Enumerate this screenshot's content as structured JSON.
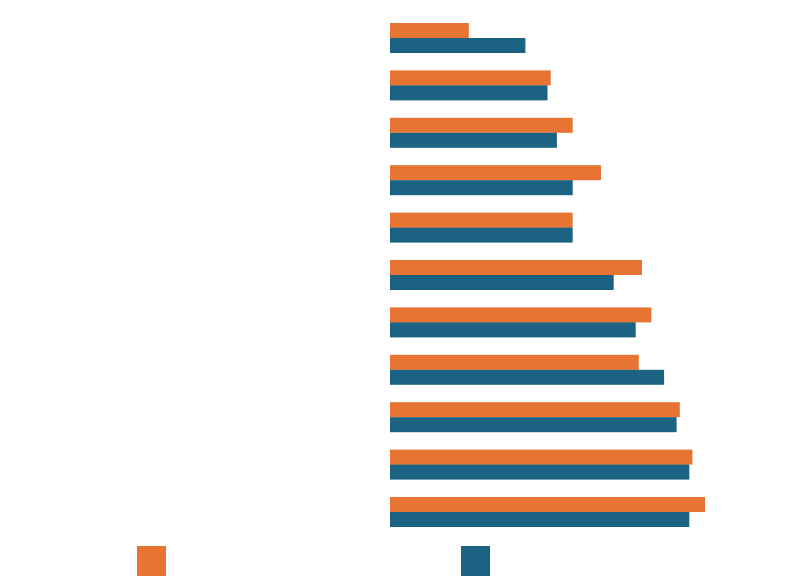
{
  "chart_data": {
    "type": "bar",
    "orientation": "horizontal",
    "categories": [
      "",
      "",
      "",
      "",
      "",
      "",
      "",
      "",
      "",
      "",
      ""
    ],
    "series": [
      {
        "color": "#e87433",
        "values": [
          25,
          51,
          58,
          67,
          58,
          80,
          83,
          79,
          92,
          96,
          100
        ]
      },
      {
        "color": "#1b6283",
        "values": [
          43,
          50,
          53,
          58,
          58,
          71,
          78,
          87,
          91,
          95,
          95
        ]
      }
    ],
    "xlim": [
      0,
      100
    ],
    "grid": false,
    "legend": {
      "placement": "bottom"
    }
  }
}
